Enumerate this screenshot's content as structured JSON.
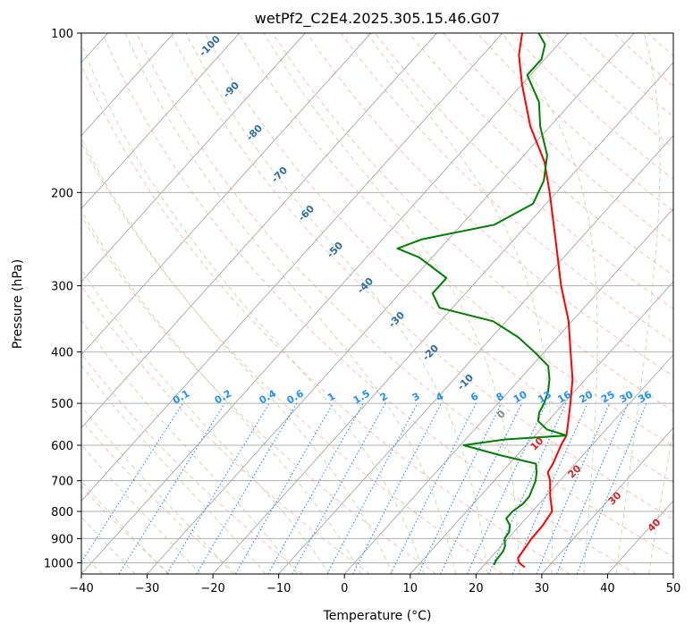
{
  "chart_data": {
    "type": "skewt",
    "title": "wetPf2_C2E4.2025.305.15.46.G07",
    "xlabel": "Temperature (°C)",
    "ylabel": "Pressure (hPa)",
    "xlim": [
      -40,
      50
    ],
    "ylim": [
      1050,
      100
    ],
    "y_scale": "log",
    "grid": true,
    "x_ticks": [
      -40,
      -30,
      -20,
      -10,
      0,
      10,
      20,
      30,
      40,
      50
    ],
    "x_tick_labels": [
      "−40",
      "−30",
      "−20",
      "−10",
      "0",
      "10",
      "20",
      "30",
      "40",
      "50"
    ],
    "y_ticks": [
      100,
      200,
      300,
      400,
      500,
      600,
      700,
      800,
      900,
      1000
    ],
    "y_tick_labels": [
      "100",
      "200",
      "300",
      "400",
      "500",
      "600",
      "700",
      "800",
      "900",
      "1000"
    ],
    "series": [
      {
        "name": "",
        "color": "#ff0000",
        "points": [
          {
            "p": 1020,
            "t": 26.5
          },
          {
            "p": 1000,
            "t": 25.0
          },
          {
            "p": 980,
            "t": 24.2
          },
          {
            "p": 950,
            "t": 24.0
          },
          {
            "p": 900,
            "t": 23.6
          },
          {
            "p": 850,
            "t": 23.5
          },
          {
            "p": 800,
            "t": 23.0
          },
          {
            "p": 750,
            "t": 20.7
          },
          {
            "p": 700,
            "t": 18.5
          },
          {
            "p": 675,
            "t": 17.0
          },
          {
            "p": 650,
            "t": 16.6
          },
          {
            "p": 600,
            "t": 15.3
          },
          {
            "p": 575,
            "t": 14.8
          },
          {
            "p": 550,
            "t": 13.6
          },
          {
            "p": 500,
            "t": 11.0
          },
          {
            "p": 450,
            "t": 8.0
          },
          {
            "p": 400,
            "t": 4.0
          },
          {
            "p": 350,
            "t": -0.5
          },
          {
            "p": 300,
            "t": -6.5
          },
          {
            "p": 250,
            "t": -13.0
          },
          {
            "p": 200,
            "t": -21.0
          },
          {
            "p": 175,
            "t": -26.0
          },
          {
            "p": 150,
            "t": -33.0
          },
          {
            "p": 125,
            "t": -40.0
          },
          {
            "p": 110,
            "t": -44.5
          },
          {
            "p": 100,
            "t": -47.0
          }
        ]
      },
      {
        "name": "",
        "color": "#008000",
        "points": [
          {
            "p": 1010,
            "t": 21.5
          },
          {
            "p": 990,
            "t": 21.2
          },
          {
            "p": 950,
            "t": 21.0
          },
          {
            "p": 930,
            "t": 20.6
          },
          {
            "p": 900,
            "t": 19.5
          },
          {
            "p": 875,
            "t": 19.3
          },
          {
            "p": 850,
            "t": 18.5
          },
          {
            "p": 825,
            "t": 17.0
          },
          {
            "p": 800,
            "t": 17.0
          },
          {
            "p": 775,
            "t": 17.5
          },
          {
            "p": 750,
            "t": 17.5
          },
          {
            "p": 700,
            "t": 16.3
          },
          {
            "p": 675,
            "t": 15.3
          },
          {
            "p": 650,
            "t": 14.0
          },
          {
            "p": 625,
            "t": 7.0
          },
          {
            "p": 600,
            "t": 0.5
          },
          {
            "p": 585,
            "t": 6.0
          },
          {
            "p": 575,
            "t": 14.8
          },
          {
            "p": 560,
            "t": 11.0
          },
          {
            "p": 540,
            "t": 8.5
          },
          {
            "p": 520,
            "t": 7.5
          },
          {
            "p": 500,
            "t": 7.0
          },
          {
            "p": 475,
            "t": 6.0
          },
          {
            "p": 450,
            "t": 4.5
          },
          {
            "p": 425,
            "t": 2.5
          },
          {
            "p": 400,
            "t": -1.5
          },
          {
            "p": 375,
            "t": -6.0
          },
          {
            "p": 350,
            "t": -12.0
          },
          {
            "p": 330,
            "t": -22.0
          },
          {
            "p": 310,
            "t": -25.0
          },
          {
            "p": 290,
            "t": -25.0
          },
          {
            "p": 265,
            "t": -32.0
          },
          {
            "p": 255,
            "t": -36.5
          },
          {
            "p": 245,
            "t": -34.0
          },
          {
            "p": 230,
            "t": -25.0
          },
          {
            "p": 210,
            "t": -22.0
          },
          {
            "p": 190,
            "t": -23.5
          },
          {
            "p": 170,
            "t": -26.5
          },
          {
            "p": 150,
            "t": -31.5
          },
          {
            "p": 135,
            "t": -35.0
          },
          {
            "p": 120,
            "t": -40.5
          },
          {
            "p": 112,
            "t": -40.5
          },
          {
            "p": 105,
            "t": -42.0
          },
          {
            "p": 100,
            "t": -44.5
          }
        ]
      }
    ],
    "dry_adiabat_labels": [
      "-100",
      "-90",
      "-80",
      "-70",
      "-60",
      "-50",
      "-40",
      "-30",
      "-20",
      "-10"
    ],
    "moist_adiabat_labels": [
      "0",
      "10",
      "20",
      "30",
      "40"
    ],
    "mixing_ratio_labels": [
      "0.1",
      "0.2",
      "0.4",
      "0.6",
      "1",
      "1.5",
      "2",
      "3",
      "4",
      "6",
      "8",
      "10",
      "13",
      "16",
      "20",
      "25",
      "30",
      "36"
    ],
    "colors": {
      "isotherm": "#b0b0b0",
      "dry_adiabat": "#ff8c69",
      "moist_adiabat": "#9acd80",
      "mixing_ratio": "#1e90ff",
      "temperature": "#ff0000",
      "dewpoint": "#008000"
    }
  }
}
